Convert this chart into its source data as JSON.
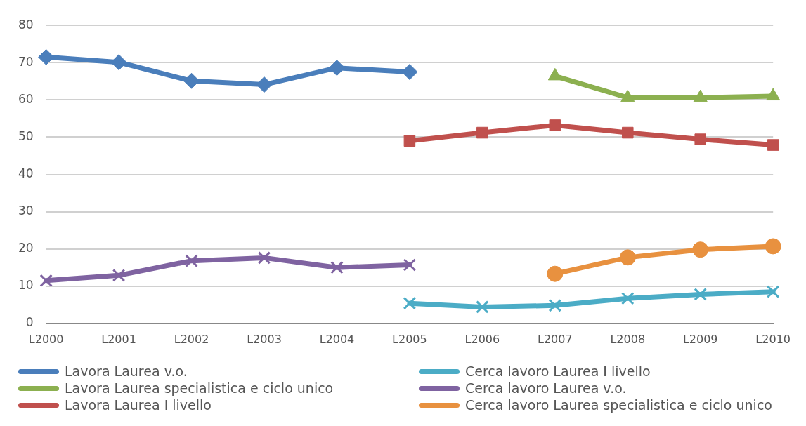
{
  "chart_data": {
    "type": "line",
    "categories": [
      "L2000",
      "L2001",
      "L2002",
      "L2003",
      "L2004",
      "L2005",
      "L2006",
      "L2007",
      "L2008",
      "L2009",
      "L2010"
    ],
    "series": [
      {
        "name": "Lavora  Laurea v.o.",
        "color": "#4a7ebb",
        "marker": "diamond",
        "values": [
          71.5,
          70.1,
          65.1,
          64.1,
          68.6,
          67.5,
          null,
          null,
          null,
          null,
          null
        ]
      },
      {
        "name": "Lavora  Laurea specialistica e ciclo unico",
        "color": "#8cb050",
        "marker": "triangle",
        "values": [
          null,
          null,
          null,
          null,
          null,
          null,
          null,
          66.4,
          60.6,
          60.6,
          61.0
        ]
      },
      {
        "name": "Lavora  Laurea I livello",
        "color": "#c0504d",
        "marker": "square",
        "values": [
          null,
          null,
          null,
          null,
          null,
          49.0,
          51.2,
          53.2,
          51.2,
          49.4,
          47.9
        ]
      },
      {
        "name": "Cerca lavoro  Laurea I livello",
        "color": "#4bacc6",
        "marker": "cross",
        "values": [
          null,
          null,
          null,
          null,
          null,
          5.4,
          4.4,
          4.8,
          6.7,
          7.8,
          8.5
        ]
      },
      {
        "name": "Cerca lavoro  Laurea v.o.",
        "color": "#7f63a1",
        "marker": "cross",
        "values": [
          11.5,
          12.9,
          16.8,
          17.6,
          15.0,
          15.7,
          null,
          null,
          null,
          null,
          null
        ]
      },
      {
        "name": "Cerca lavoro  Laurea specialistica e ciclo unico",
        "color": "#e8913f",
        "marker": "circle",
        "values": [
          null,
          null,
          null,
          null,
          null,
          null,
          null,
          13.3,
          17.7,
          19.8,
          20.7
        ]
      }
    ],
    "ylim": [
      0,
      80
    ],
    "yticks": [
      0,
      10,
      20,
      30,
      40,
      50,
      60,
      70,
      80
    ],
    "grid": "y",
    "legend": "bottom"
  }
}
